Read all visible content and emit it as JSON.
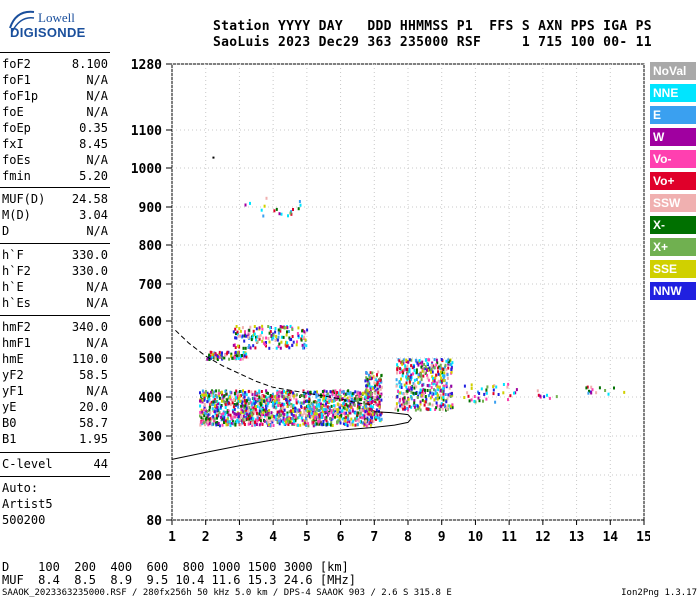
{
  "logo": {
    "top_text": "Lowell",
    "brand_text": "DIGISONDE"
  },
  "header": {
    "line1": "Station YYYY DAY   DDD HHMMSS P1  FFS S AXN PPS IGA PS",
    "line2": "SaoLuis 2023 Dec29 363 235000 RSF     1 715 100 00- 11"
  },
  "params_group1": [
    {
      "label": "foF2",
      "value": "8.100"
    },
    {
      "label": "foF1",
      "value": "N/A"
    },
    {
      "label": "foF1p",
      "value": "N/A"
    },
    {
      "label": "foE",
      "value": "N/A"
    },
    {
      "label": "foEp",
      "value": "0.35"
    },
    {
      "label": "fxI",
      "value": "8.45"
    },
    {
      "label": "foEs",
      "value": "N/A"
    },
    {
      "label": "fmin",
      "value": "5.20"
    }
  ],
  "params_group2": [
    {
      "label": "MUF(D)",
      "value": "24.58"
    },
    {
      "label": "M(D)",
      "value": "3.04"
    },
    {
      "label": "D",
      "value": "N/A"
    }
  ],
  "params_group3": [
    {
      "label": "h`F",
      "value": "330.0"
    },
    {
      "label": "h`F2",
      "value": "330.0"
    },
    {
      "label": "h`E",
      "value": "N/A"
    },
    {
      "label": "h`Es",
      "value": "N/A"
    }
  ],
  "params_group4": [
    {
      "label": "hmF2",
      "value": "340.0"
    },
    {
      "label": "hmF1",
      "value": "N/A"
    },
    {
      "label": "hmE",
      "value": "110.0"
    },
    {
      "label": "yF2",
      "value": "58.5"
    },
    {
      "label": "yF1",
      "value": "N/A"
    },
    {
      "label": "yE",
      "value": "20.0"
    },
    {
      "label": "B0",
      "value": "58.7"
    },
    {
      "label": "B1",
      "value": "1.95"
    }
  ],
  "params_group5": [
    {
      "label": "C-level",
      "value": "44"
    }
  ],
  "autoscaling": {
    "line1": "Auto:",
    "line2": "Artist5",
    "line3": "500200"
  },
  "legend": [
    {
      "label": "NoVal",
      "color": "#a9a9a9"
    },
    {
      "label": "NNE",
      "color": "#00e5ff"
    },
    {
      "label": "E",
      "color": "#3aa0f0"
    },
    {
      "label": "W",
      "color": "#a000a0"
    },
    {
      "label": "Vo-",
      "color": "#ff40b0"
    },
    {
      "label": "Vo+",
      "color": "#e0002a"
    },
    {
      "label": "SSW",
      "color": "#f0b0b0"
    },
    {
      "label": "X-",
      "color": "#007000"
    },
    {
      "label": "X+",
      "color": "#70b050"
    },
    {
      "label": "SSE",
      "color": "#d0d000"
    },
    {
      "label": "NNW",
      "color": "#2020e0"
    }
  ],
  "chart_data": {
    "type": "scatter",
    "xlim": [
      1,
      15
    ],
    "ylim": [
      80,
      1280
    ],
    "x_ticks": [
      "1",
      "2",
      "3",
      "4",
      "5",
      "6",
      "7",
      "8",
      "9",
      "10",
      "11",
      "12",
      "13",
      "14",
      "15"
    ],
    "y_ticks": [
      "80",
      "200",
      "300",
      "400",
      "500",
      "600",
      "700",
      "800",
      "900",
      "1000",
      "1100",
      "1280"
    ],
    "y_tick_values": [
      80,
      200,
      300,
      400,
      500,
      600,
      700,
      800,
      900,
      1000,
      1100,
      1280
    ],
    "y_scale": "virtual height (nonlinear, decreasing spacing above 400 km)",
    "profile_curve": {
      "x": [
        1.0,
        2.0,
        3.0,
        4.0,
        5.0,
        6.0,
        7.0,
        7.6,
        8.0,
        8.1,
        8.0,
        7.5,
        7.0
      ],
      "y": [
        240,
        258,
        275,
        290,
        305,
        315,
        322,
        328,
        335,
        345,
        355,
        360,
        362
      ]
    },
    "trace_curve": {
      "x": [
        1.1,
        1.5,
        2.0,
        2.5,
        3.0,
        3.5,
        4.0,
        5.0,
        6.0,
        6.5,
        7.0
      ],
      "y": [
        575,
        540,
        505,
        480,
        460,
        440,
        425,
        410,
        395,
        385,
        380
      ]
    },
    "echo_clusters": [
      {
        "x_range": [
          1.8,
          6.9
        ],
        "y_range": [
          330,
          420
        ]
      },
      {
        "x_range": [
          2.0,
          3.2
        ],
        "y_range": [
          500,
          520
        ]
      },
      {
        "x_range": [
          2.8,
          5.0
        ],
        "y_range": [
          530,
          590
        ]
      },
      {
        "x_range": [
          6.7,
          7.2
        ],
        "y_range": [
          340,
          470
        ]
      },
      {
        "x_range": [
          7.6,
          9.3
        ],
        "y_range": [
          370,
          500
        ]
      },
      {
        "x_range": [
          9.6,
          11.2
        ],
        "y_range": [
          390,
          440
        ]
      },
      {
        "x_range": [
          11.8,
          12.4
        ],
        "y_range": [
          400,
          420
        ]
      },
      {
        "x_range": [
          13.2,
          14.4
        ],
        "y_range": [
          410,
          430
        ]
      },
      {
        "x_range": [
          3.0,
          4.8
        ],
        "y_range": [
          880,
          930
        ]
      }
    ]
  },
  "bottom_table": {
    "line1": "D    100  200  400  600  800 1000 1500 3000 [km]",
    "line2": "MUF  8.4  8.5  8.9  9.5 10.4 11.6 15.3 24.6 [MHz]"
  },
  "footer": {
    "left": "SAAOK_2023363235000.RSF / 280fx256h 50 kHz 5.0 km / DPS-4 SAAOK 903 / 2.6 S 315.8 E",
    "right": "Ion2Png 1.3.17"
  }
}
